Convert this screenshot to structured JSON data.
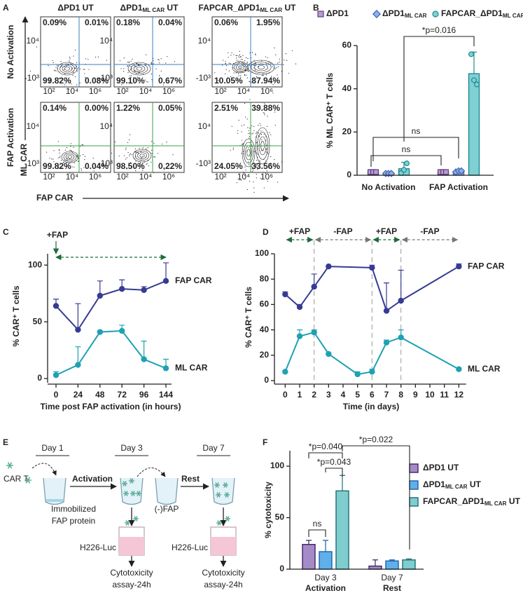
{
  "panel_labels": [
    "A",
    "B",
    "C",
    "D",
    "E",
    "F"
  ],
  "panel_a": {
    "columns": [
      {
        "main": "ΔPD1 UT"
      },
      {
        "main": "ΔPD1",
        "sub": "ML CAR",
        "tail": " UT"
      },
      {
        "main": "FAPCAR_ΔPD1",
        "sub": "ML CAR",
        "tail": " UT"
      }
    ],
    "rows": [
      "No Activation",
      "FAP Activation"
    ],
    "row_colors": [
      "#222222",
      "#2e9c3a"
    ],
    "gate_colors": [
      "#3b7fc4",
      "#3aa34a"
    ],
    "y_axis_label": "ML CAR",
    "x_axis_label": "FAP CAR",
    "x_ticks": [
      "10²",
      "10⁴",
      "10⁶"
    ],
    "y_ticks": [
      "-10³",
      "10⁴"
    ],
    "quadrants": [
      [
        {
          "ul": "0.09%",
          "ur": "0.01%",
          "ll": "99.82%",
          "lr": "0.08%"
        },
        {
          "ul": "0.18%",
          "ur": "0.04%",
          "ll": "99.10%",
          "lr": "0.67%"
        },
        {
          "ul": "0.06%",
          "ur": "1.95%",
          "ll": "10.05%",
          "lr": "87.94%"
        }
      ],
      [
        {
          "ul": "0.14%",
          "ur": "0.00%",
          "ll": "99.82%",
          "lr": "0.04%"
        },
        {
          "ul": "1.22%",
          "ur": "0.05%",
          "ll": "98.50%",
          "lr": "0.22%"
        },
        {
          "ul": "2.51%",
          "ur": "39.88%",
          "ll": "24.05%",
          "lr": "33.56%"
        }
      ]
    ]
  },
  "chart_data": [
    {
      "type": "bar",
      "categories": [
        "No Activation",
        "FAP Activation"
      ],
      "category_colors": [
        "#222222",
        "#2e9c3a"
      ],
      "ylabel": "% ML CAR⁺ T cells",
      "ylim": [
        0,
        60
      ],
      "yticks": [
        0,
        20,
        40,
        60
      ],
      "series": [
        {
          "name": "ΔPD1",
          "color": "#b89bd3",
          "edge": "#5d3f7e",
          "marker": "square",
          "values": [
            1.5,
            1.5
          ],
          "errors": [
            0.5,
            0.5
          ],
          "points": [
            [
              1.5,
              1.5,
              1.5
            ],
            [
              1.5,
              1.5,
              1.5
            ]
          ]
        },
        {
          "name": "ΔPD1",
          "name_sub": "ML CAR",
          "color": "#8fb0e8",
          "edge": "#3f63b5",
          "marker": "diamond",
          "values": [
            0.8,
            1.8
          ],
          "errors": [
            0.3,
            0.5
          ],
          "points": [
            [
              0.8,
              0.8,
              0.8
            ],
            [
              1.5,
              2,
              2
            ]
          ]
        },
        {
          "name": "FAPCAR_ΔPD1",
          "name_sub": "ML CAR",
          "color": "#7fd0d3",
          "edge": "#1f8a93",
          "marker": "circle",
          "values": [
            3,
            47
          ],
          "errors": [
            3,
            10
          ],
          "points": [
            [
              1,
              2.5,
              5.5
            ],
            [
              56,
              44,
              42
            ]
          ]
        }
      ],
      "annotations": [
        "*p=0.016",
        "ns",
        "ns"
      ]
    },
    {
      "type": "line",
      "categories": [
        "0",
        "24",
        "48",
        "72",
        "96",
        "144"
      ],
      "xlabel": "Time post FAP activation (in hours)",
      "ylabel": "% CAR⁺ T cells",
      "ylim": [
        0,
        110
      ],
      "yticks": [
        0,
        50,
        100
      ],
      "series": [
        {
          "name": "FAP CAR",
          "color": "#363b93",
          "values": [
            64,
            43,
            73,
            79,
            78,
            86
          ],
          "errors": [
            6,
            23,
            13,
            8,
            3,
            16
          ]
        },
        {
          "name": "ML CAR",
          "color": "#1ea1b3",
          "values": [
            3,
            12,
            41,
            42,
            17,
            9
          ],
          "errors": [
            3,
            16,
            1,
            5,
            16,
            8
          ]
        }
      ],
      "annotations": [
        "+FAP"
      ]
    },
    {
      "type": "line",
      "xlabel": "Time (in days)",
      "ylabel": "% CAR⁺ T cells",
      "xlim": [
        -0.5,
        12.5
      ],
      "xticks": [
        0,
        1,
        2,
        3,
        4,
        5,
        6,
        7,
        8,
        9,
        10,
        11,
        12
      ],
      "ylim": [
        0,
        100
      ],
      "yticks": [
        0,
        20,
        40,
        60,
        80,
        100
      ],
      "series": [
        {
          "name": "FAP CAR",
          "color": "#363b93",
          "x": [
            0,
            1,
            2,
            3,
            6,
            7,
            8,
            12
          ],
          "values": [
            68,
            58,
            74,
            90,
            89,
            55,
            63,
            90
          ],
          "errors": [
            2,
            2,
            10,
            0,
            2,
            22,
            24,
            2
          ]
        },
        {
          "name": "ML CAR",
          "color": "#1ea1b3",
          "x": [
            0,
            1,
            2,
            3,
            5,
            6,
            7,
            8,
            12
          ],
          "values": [
            7,
            35,
            38,
            21,
            5,
            7,
            30,
            34,
            9
          ],
          "errors": [
            0,
            5,
            2,
            0,
            2,
            2,
            2,
            6,
            1
          ]
        }
      ],
      "phase_bounds": [
        0,
        2,
        6,
        8,
        12
      ],
      "phase_labels": [
        "+FAP",
        "-FAP",
        "+FAP",
        "-FAP"
      ],
      "phase_colors": [
        "#1e6b3a",
        "#777777",
        "#1e6b3a",
        "#777777"
      ]
    },
    {
      "type": "bar",
      "categories": [
        "Day 3",
        "Day 7"
      ],
      "category_sublabels": [
        "Activation",
        "Rest"
      ],
      "sublabel_colors": [
        "#2e9c3a",
        "#222222"
      ],
      "ylabel": "% cytotoxicity",
      "ylim": [
        0,
        115
      ],
      "yticks": [
        0,
        50,
        100
      ],
      "series": [
        {
          "name": "ΔPD1",
          "name_suffix": " UT",
          "color": "#a58ac8",
          "edge": "#3d2560",
          "values": [
            24,
            3
          ],
          "errors": [
            4,
            6
          ]
        },
        {
          "name": "ΔPD1",
          "name_sub": "ML CAR",
          "name_suffix": " UT",
          "color": "#5fb0ea",
          "edge": "#1f5fa8",
          "values": [
            17,
            8
          ],
          "errors": [
            11,
            1
          ]
        },
        {
          "name": "FAPCAR_ΔPD1",
          "name_sub": "ML CAR",
          "name_suffix": " UT",
          "color": "#7fcdcd",
          "edge": "#1a6e76",
          "values": [
            76,
            9
          ],
          "errors": [
            15,
            1
          ]
        }
      ],
      "annotations": [
        "*p=0.040",
        "*p=0.043",
        "*p=0.022",
        "ns"
      ]
    }
  ],
  "panel_e": {
    "days": [
      "Day 1",
      "Day 3",
      "Day 7"
    ],
    "car_t": "CAR T",
    "steps": [
      "Activation",
      "Rest"
    ],
    "coating": [
      "Immobilized",
      "FAP protein"
    ],
    "wash": "(-)FAP",
    "targets": [
      "H226-Luc",
      "H226-Luc"
    ],
    "assays": [
      [
        "Cytotoxicity",
        "assay-24h"
      ],
      [
        "Cytotoxicity",
        "assay-24h"
      ]
    ]
  }
}
